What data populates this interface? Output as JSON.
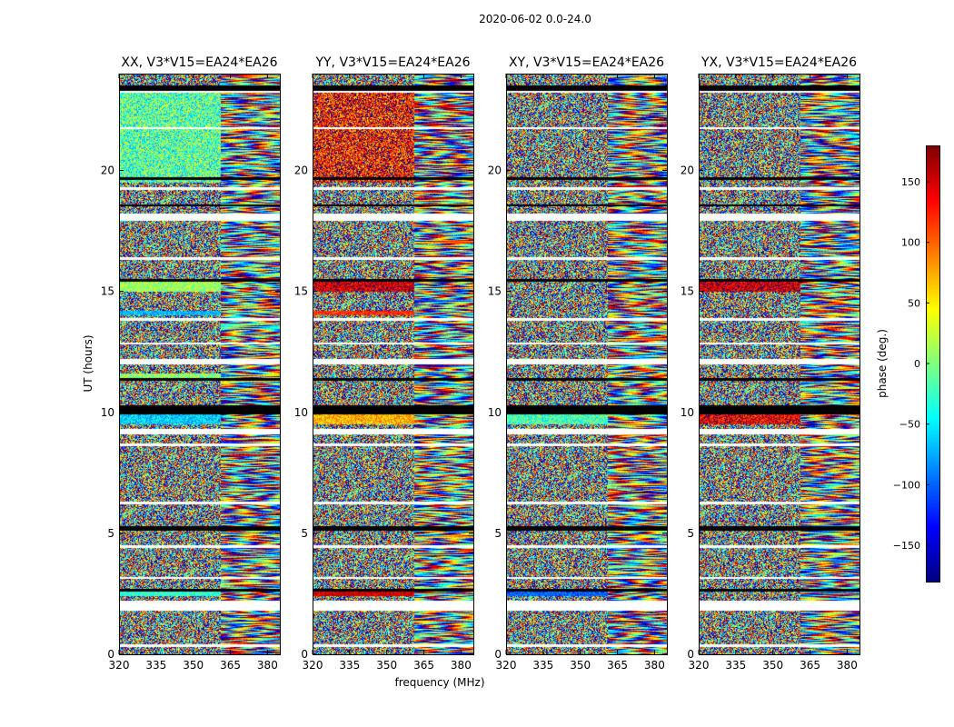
{
  "figure": {
    "suptitle": "2020-06-02 0.0-24.0",
    "xlabel": "frequency (MHz)",
    "ylabel": "UT (hours)"
  },
  "colors": {
    "flag_black": "#000000",
    "flag_white": "#ffffff",
    "axis": "#000000"
  },
  "colorbar": {
    "label": "phase (deg.)",
    "range": [
      -180,
      180
    ],
    "ticks": [
      -150,
      -100,
      -50,
      0,
      50,
      100,
      150
    ],
    "tick_labels": [
      "−150",
      "−100",
      "−50",
      "0",
      "50",
      "100",
      "150"
    ],
    "colormap": "jet",
    "colormap_stops": [
      "#00007f",
      "#0000ff",
      "#007fff",
      "#00ffff",
      "#7fff7f",
      "#ffff00",
      "#ff7f00",
      "#ff0000",
      "#7f0000"
    ]
  },
  "chart_data": {
    "type": "heatmap",
    "x_range": [
      320,
      385
    ],
    "y_range": [
      0,
      24
    ],
    "xticks": [
      320,
      335,
      350,
      365,
      380
    ],
    "xtick_labels": [
      "320",
      "335",
      "350",
      "365",
      "380"
    ],
    "yticks": [
      0,
      5,
      10,
      15,
      20
    ],
    "ytick_labels": [
      "0",
      "5",
      "10",
      "15",
      "20"
    ],
    "coherent_boundary_mhz": 361,
    "panels": [
      {
        "name": "XX",
        "title": "XX, V3*V15=EA24*EA26",
        "coherent_phases": [
          {
            "y0": 19.5,
            "y1": 23.5,
            "f0": 320,
            "f1": 361,
            "phase": -15,
            "spread": 70
          },
          {
            "y0": 15.0,
            "y1": 15.5,
            "f0": 320,
            "f1": 361,
            "phase": 10,
            "spread": 40
          },
          {
            "y0": 14.0,
            "y1": 14.2,
            "f0": 320,
            "f1": 361,
            "phase": -70,
            "spread": 30
          },
          {
            "y0": 11.3,
            "y1": 11.6,
            "f0": 320,
            "f1": 361,
            "phase": 5,
            "spread": 40
          },
          {
            "y0": 9.5,
            "y1": 10.3,
            "f0": 320,
            "f1": 361,
            "phase": -60,
            "spread": 40
          },
          {
            "y0": 2.4,
            "y1": 2.6,
            "f0": 320,
            "f1": 361,
            "phase": -30,
            "spread": 30
          }
        ]
      },
      {
        "name": "YY",
        "title": "YY, V3*V15=EA24*EA26",
        "coherent_phases": [
          {
            "y0": 19.5,
            "y1": 23.5,
            "f0": 320,
            "f1": 361,
            "phase": 130,
            "spread": 80
          },
          {
            "y0": 15.0,
            "y1": 15.5,
            "f0": 320,
            "f1": 361,
            "phase": 150,
            "spread": 40
          },
          {
            "y0": 14.0,
            "y1": 14.2,
            "f0": 320,
            "f1": 361,
            "phase": 120,
            "spread": 30
          },
          {
            "y0": 9.5,
            "y1": 10.3,
            "f0": 320,
            "f1": 361,
            "phase": 70,
            "spread": 40
          },
          {
            "y0": 2.4,
            "y1": 2.6,
            "f0": 320,
            "f1": 361,
            "phase": 150,
            "spread": 30
          }
        ]
      },
      {
        "name": "XY",
        "title": "XY, V3*V15=EA24*EA26",
        "coherent_phases": [
          {
            "y0": 9.5,
            "y1": 10.3,
            "f0": 320,
            "f1": 361,
            "phase": -20,
            "spread": 50
          },
          {
            "y0": 2.4,
            "y1": 2.6,
            "f0": 320,
            "f1": 361,
            "phase": -100,
            "spread": 30
          }
        ]
      },
      {
        "name": "YX",
        "title": "YX, V3*V15=EA24*EA26",
        "coherent_phases": [
          {
            "y0": 9.5,
            "y1": 10.3,
            "f0": 320,
            "f1": 361,
            "phase": 140,
            "spread": 50
          },
          {
            "y0": 15.0,
            "y1": 15.5,
            "f0": 320,
            "f1": 361,
            "phase": 150,
            "spread": 40
          }
        ]
      }
    ],
    "flagged_hours_white": [
      [
        0.3,
        0.4
      ],
      [
        1.8,
        2.2
      ],
      [
        3.1,
        3.2
      ],
      [
        4.4,
        4.5
      ],
      [
        6.2,
        6.3
      ],
      [
        8.6,
        8.7
      ],
      [
        9.1,
        9.3
      ],
      [
        12.0,
        12.2
      ],
      [
        12.8,
        12.9
      ],
      [
        13.8,
        13.9
      ],
      [
        16.3,
        16.4
      ],
      [
        17.9,
        18.2
      ],
      [
        19.2,
        19.3
      ],
      [
        21.7,
        21.8
      ],
      [
        23.2,
        23.3
      ]
    ],
    "flagged_hours_black": [
      [
        2.6,
        2.7
      ],
      [
        5.1,
        5.3
      ],
      [
        9.9,
        10.3
      ],
      [
        11.3,
        11.4
      ],
      [
        15.4,
        15.5
      ],
      [
        18.5,
        18.6
      ],
      [
        19.6,
        19.7
      ],
      [
        23.3,
        23.5
      ]
    ]
  }
}
